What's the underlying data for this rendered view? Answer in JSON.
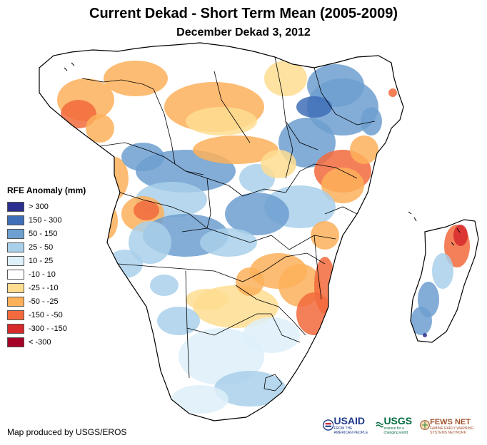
{
  "title": "Current Dekad - Short Term Mean (2005-2009)",
  "subtitle": "December Dekad 3, 2012",
  "legend": {
    "title": "RFE Anomaly (mm)",
    "items": [
      {
        "label": "> 300",
        "color": "#2b2f8f"
      },
      {
        "label": "150 - 300",
        "color": "#3f6fb8"
      },
      {
        "label": "50 - 150",
        "color": "#6d9fd0"
      },
      {
        "label": "25 - 50",
        "color": "#a9d0ea"
      },
      {
        "label": "10 - 25",
        "color": "#def0f9"
      },
      {
        "label": "-10 - 10",
        "color": "#ffffff"
      },
      {
        "label": "-25 - -10",
        "color": "#fedd90"
      },
      {
        "label": "-50 - -25",
        "color": "#fdb05a"
      },
      {
        "label": "-150 - -50",
        "color": "#f26a3d"
      },
      {
        "label": "-300 - -150",
        "color": "#d6292a"
      },
      {
        "label": "< -300",
        "color": "#a50026"
      }
    ]
  },
  "credit": "Map produced by USGS/EROS",
  "logos": {
    "usaid": "USAID",
    "usaid_tagline": "FROM THE AMERICAN PEOPLE",
    "usgs": "USGS",
    "usgs_tagline": "science for a changing world",
    "fewsnet": "FEWS NET",
    "fewsnet_tagline": "FAMINE EARLY WARNING SYSTEMS NETWORK"
  }
}
